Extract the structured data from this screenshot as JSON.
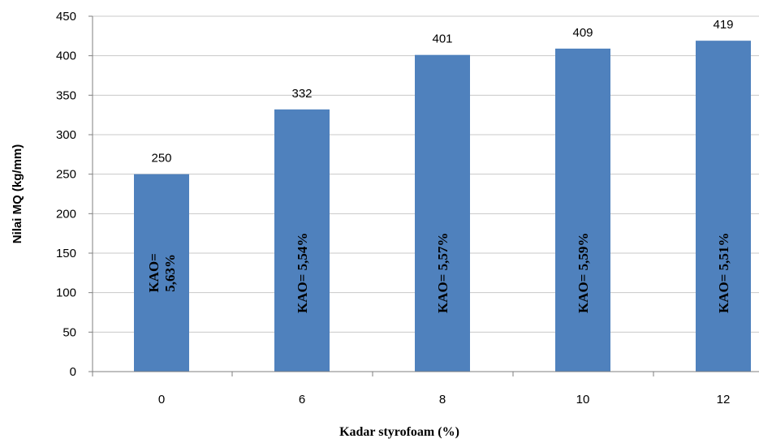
{
  "chart_data": {
    "type": "bar",
    "categories": [
      "0",
      "6",
      "8",
      "10",
      "12"
    ],
    "values": [
      250,
      332,
      401,
      409,
      419
    ],
    "data_labels": [
      "250",
      "332",
      "401",
      "409",
      "419"
    ],
    "bar_annotations": [
      [
        "KAO=",
        "5,63%"
      ],
      [
        "KAO= 5,54%"
      ],
      [
        "KAO= 5,57%"
      ],
      [
        "KAO= 5,59%"
      ],
      [
        "KAO= 5,51%"
      ]
    ],
    "xlabel": "Kadar styrofoam (%)",
    "ylabel": "Nilai MQ (kg/mm)",
    "ylim": [
      0,
      450
    ],
    "yticks": [
      0,
      50,
      100,
      150,
      200,
      250,
      300,
      350,
      400,
      450
    ],
    "grid": true,
    "bar_color": "#4F81BD"
  }
}
